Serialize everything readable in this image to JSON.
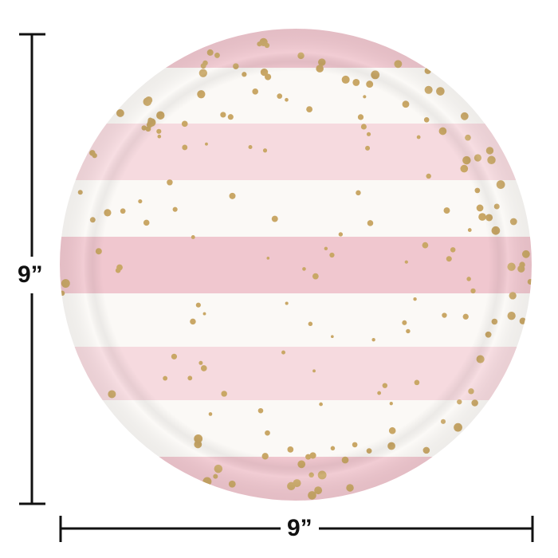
{
  "product": {
    "height_label": "9”",
    "width_label": "9”"
  },
  "colors": {
    "stripe_pink": "#f0c7cf",
    "stripe_light_pink": "#f6dadf",
    "stripe_white": "#fbf9f6",
    "dot_gold": "#c9a766",
    "dimension_line": "#111111"
  }
}
